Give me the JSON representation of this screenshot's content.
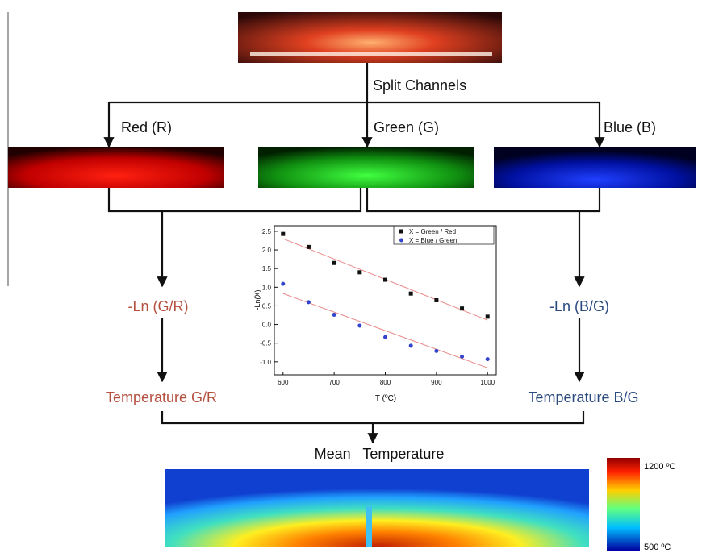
{
  "labels": {
    "split": "Split Channels",
    "red": "Red (R)",
    "green": "Green (G)",
    "blue": "Blue (B)",
    "ln_gr": "-Ln (G/R)",
    "ln_bg": "-Ln (B/G)",
    "temp_gr": "Temperature G/R",
    "temp_bg": "Temperature B/G",
    "mean": "Mean   Temperature",
    "scale_max": "1200 ºC",
    "scale_min": "500 ºC"
  },
  "chart": {
    "type": "scatter",
    "xlabel": "T (ºC)",
    "ylabel": "-Ln(X)",
    "x": [
      600,
      650,
      700,
      750,
      800,
      850,
      900,
      950,
      1000
    ],
    "series": [
      {
        "name": "X = Green / Red",
        "color": "#111111",
        "marker": "square",
        "values": [
          2.43,
          2.08,
          1.65,
          1.4,
          1.2,
          0.83,
          0.65,
          0.43,
          0.21
        ]
      },
      {
        "name": "X = Blue / Green",
        "color": "#3344cc",
        "marker": "circle",
        "values": [
          1.09,
          0.6,
          0.26,
          -0.03,
          -0.34,
          -0.57,
          -0.71,
          -0.86,
          -0.93
        ]
      }
    ],
    "fit_color": "#e88a8a",
    "xlim": [
      583,
      1017
    ],
    "ylim": [
      -1.35,
      2.65
    ],
    "xticks": [
      600,
      700,
      800,
      900,
      1000
    ],
    "yticks": [
      2.5,
      {
        "value": 2,
        "label": "2.0"
      },
      1.5,
      {
        "value": 1,
        "label": "1.0"
      },
      0.5,
      {
        "value": 0,
        "label": "0.0"
      },
      -0.5,
      {
        "value": -1,
        "label": "-1.0"
      }
    ]
  }
}
